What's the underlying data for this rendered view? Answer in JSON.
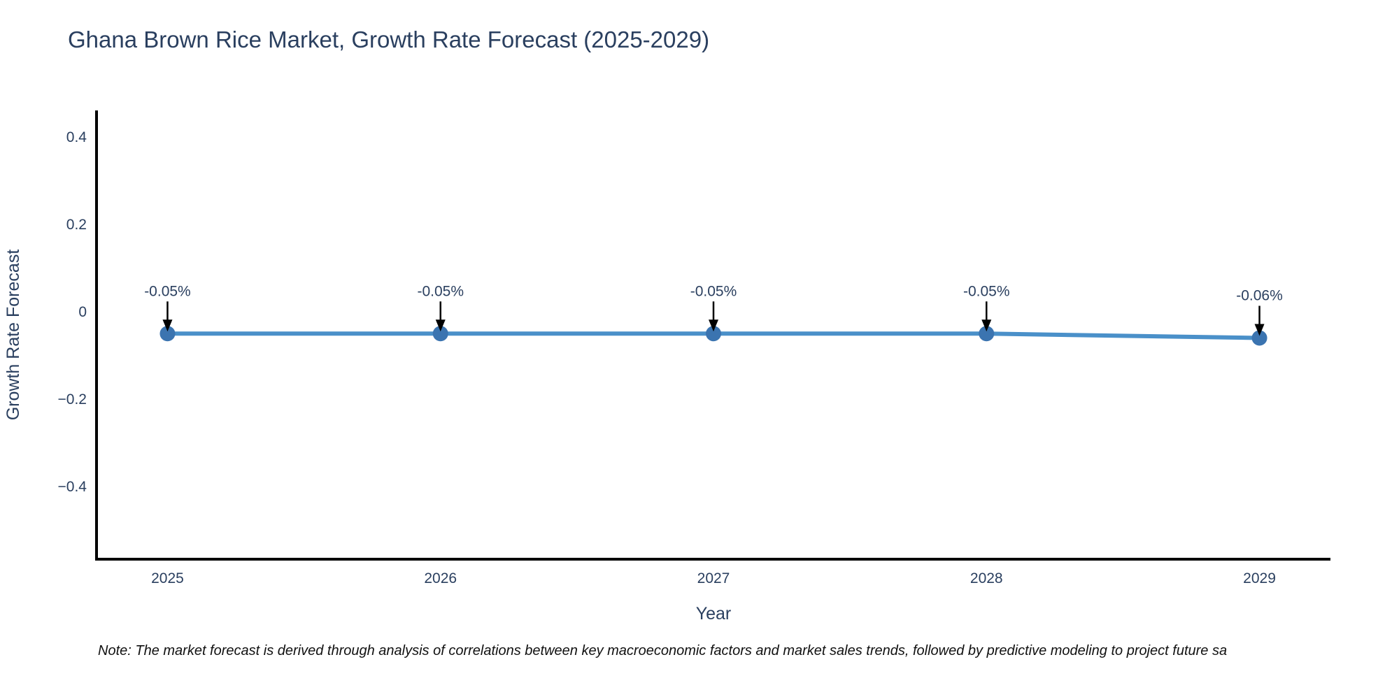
{
  "title": {
    "text": "Ghana Brown Rice Market, Growth Rate Forecast (2025-2029)"
  },
  "chart_data": {
    "type": "line",
    "title": "Ghana Brown Rice Market, Growth Rate Forecast (2025-2029)",
    "xlabel": "Year",
    "ylabel": "Growth Rate Forecast",
    "x": [
      2025,
      2026,
      2027,
      2028,
      2029
    ],
    "values": [
      -0.05,
      -0.05,
      -0.05,
      -0.05,
      -0.06
    ],
    "point_labels": [
      "-0.05%",
      "-0.05%",
      "-0.05%",
      "-0.05%",
      "-0.06%"
    ],
    "x_tick_labels": [
      "2025",
      "2026",
      "2027",
      "2028",
      "2029"
    ],
    "y_ticks": [
      0.4,
      0.2,
      0,
      -0.2,
      -0.4
    ],
    "y_tick_labels": [
      "0.4",
      "0.2",
      "0",
      "−0.2",
      "−0.4"
    ],
    "xlim": [
      2024.74,
      2029.26
    ],
    "ylim": [
      -0.5664,
      0.4608
    ],
    "grid": false,
    "legend": "none",
    "colors": {
      "line": "#4a90c9",
      "marker": "#3b74b0",
      "axis": "#000000",
      "text": "#2a3f5f",
      "arrow": "#000000"
    }
  },
  "note": {
    "text": "Note: The market forecast is derived through analysis of correlations between key macroeconomic factors and market sales trends, followed by predictive modeling to project future sa"
  }
}
